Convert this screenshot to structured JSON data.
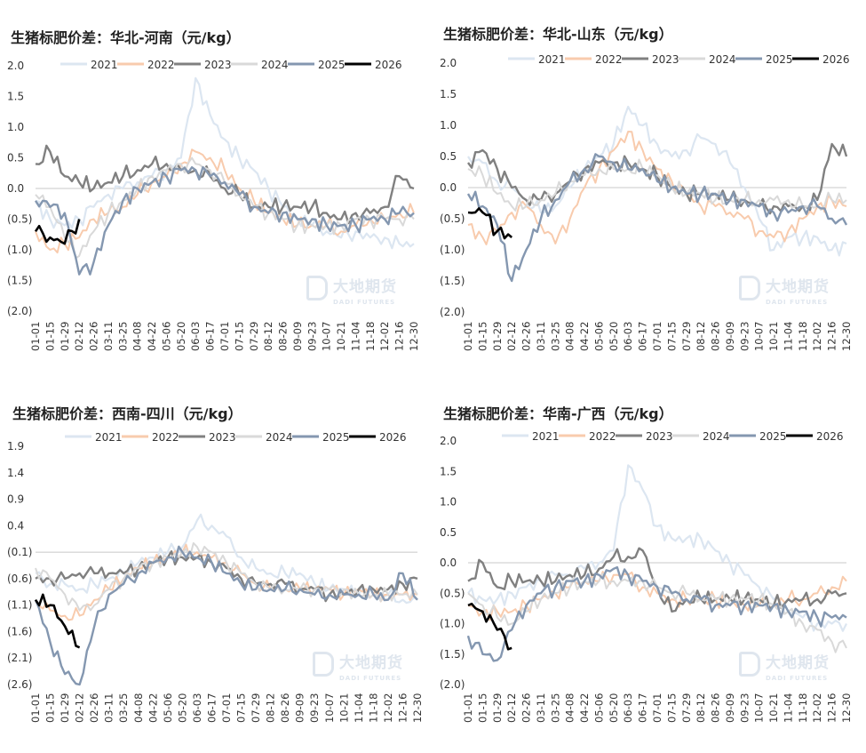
{
  "legend_labels": [
    "2021",
    "2022",
    "2023",
    "2024",
    "2025",
    "2026"
  ],
  "series_colors": {
    "2021": "#dce6f1",
    "2022": "#f8cbad",
    "2023": "#808080",
    "2024": "#d9d9d9",
    "2025": "#8497b0",
    "2026": "#000000"
  },
  "watermark": {
    "cn": "大地期货",
    "en": "DADI FUTURES"
  },
  "charts": [
    {
      "title": "生猪标肥价差：华北-河南（元/kg）",
      "ytick_labels": [
        "2.0",
        "1.5",
        "1.0",
        "0.5",
        "0.0",
        "(0.5)",
        "(1.0)",
        "(1.5)",
        "(2.0)"
      ],
      "xtick_labels": [
        "01-01",
        "01-15",
        "01-29",
        "02-12",
        "02-26",
        "03-11",
        "03-25",
        "04-08",
        "04-22",
        "05-06",
        "05-20",
        "06-03",
        "06-17",
        "07-01",
        "07-15",
        "07-29",
        "08-12",
        "08-26",
        "09-09",
        "09-23",
        "10-07",
        "10-21",
        "11-04",
        "11-18",
        "12-02",
        "12-16",
        "12-30"
      ]
    },
    {
      "title": "生猪标肥价差：华北-山东（元/kg）",
      "ytick_labels": [
        "2.0",
        "1.5",
        "1.0",
        "0.5",
        "0.0",
        "(0.5)",
        "(1.0)",
        "(1.5)",
        "(2.0)"
      ],
      "xtick_labels": [
        "01-01",
        "01-15",
        "01-29",
        "02-12",
        "02-26",
        "03-11",
        "03-25",
        "04-08",
        "04-22",
        "05-06",
        "05-20",
        "06-03",
        "06-17",
        "07-01",
        "07-15",
        "07-29",
        "08-12",
        "08-26",
        "09-09",
        "09-23",
        "10-07",
        "10-21",
        "11-04",
        "11-18",
        "12-02",
        "12-16",
        "12-30"
      ]
    },
    {
      "title": "生猪标肥价差：西南-四川（元/kg）",
      "ytick_labels": [
        "1.9",
        "1.4",
        "0.9",
        "0.4",
        "(0.1)",
        "(0.6)",
        "(1.1)",
        "(1.6)",
        "(2.1)",
        "(2.6)"
      ],
      "xtick_labels": [
        "01-01",
        "01-15",
        "01-29",
        "02-12",
        "02-26",
        "03-11",
        "03-25",
        "04-08",
        "04-22",
        "05-06",
        "05-20",
        "06-03",
        "06-17",
        "07-01",
        "07-15",
        "07-29",
        "08-12",
        "08-26",
        "09-09",
        "09-23",
        "10-07",
        "10-21",
        "11-04",
        "11-18",
        "12-02",
        "12-16",
        "12-30"
      ]
    },
    {
      "title": "生猪标肥价差：华南-广西（元/kg）",
      "ytick_labels": [
        "2.0",
        "1.5",
        "1.0",
        "0.5",
        "0.0",
        "(0.5)",
        "(1.0)",
        "(1.5)",
        "(2.0)"
      ],
      "xtick_labels": [
        "01-01",
        "01-15",
        "01-29",
        "02-12",
        "02-26",
        "03-11",
        "03-25",
        "04-08",
        "04-22",
        "05-06",
        "05-20",
        "06-03",
        "06-17",
        "07-01",
        "07-15",
        "07-29",
        "08-12",
        "08-26",
        "09-09",
        "09-23",
        "10-07",
        "10-21",
        "11-04",
        "11-18",
        "12-02",
        "12-16",
        "12-30"
      ]
    }
  ],
  "chart_data": [
    {
      "type": "line",
      "title": "生猪标肥价差：华北-河南（元/kg）",
      "x_dates": [
        "01-01",
        "01-15",
        "01-29",
        "02-12",
        "02-26",
        "03-11",
        "03-25",
        "04-08",
        "04-22",
        "05-06",
        "05-20",
        "06-03",
        "06-17",
        "07-01",
        "07-15",
        "07-29",
        "08-12",
        "08-26",
        "09-09",
        "09-23",
        "10-07",
        "10-21",
        "11-04",
        "11-18",
        "12-02",
        "12-16",
        "12-30"
      ],
      "ylim": [
        -2.0,
        2.0
      ],
      "reference_line_y": 0,
      "series": [
        {
          "name": "2021",
          "values": [
            -0.2,
            -0.5,
            -0.6,
            -0.5,
            -0.3,
            -0.1,
            0.0,
            0.1,
            0.2,
            0.3,
            0.5,
            1.8,
            1.2,
            0.8,
            0.5,
            0.3,
            0.0,
            -0.3,
            -0.5,
            -0.6,
            -0.7,
            -0.8,
            -0.7,
            -0.8,
            -0.8,
            -0.9,
            -0.9
          ]
        },
        {
          "name": "2022",
          "values": [
            -0.7,
            -1.0,
            -0.9,
            -0.8,
            -0.5,
            -0.4,
            -0.3,
            -0.1,
            0.1,
            0.2,
            0.4,
            0.6,
            0.5,
            0.3,
            0.0,
            -0.2,
            -0.4,
            -0.5,
            -0.6,
            -0.6,
            -0.6,
            -0.7,
            -0.6,
            -0.5,
            -0.5,
            -0.4,
            -0.4
          ]
        },
        {
          "name": "2023",
          "values": [
            0.4,
            0.6,
            0.2,
            0.1,
            0.0,
            0.1,
            0.2,
            0.3,
            0.4,
            0.4,
            0.3,
            0.3,
            0.2,
            0.0,
            -0.1,
            -0.3,
            -0.3,
            -0.3,
            -0.3,
            -0.3,
            -0.4,
            -0.5,
            -0.4,
            -0.4,
            -0.3,
            0.2,
            0.0
          ]
        },
        {
          "name": "2024",
          "values": [
            -0.1,
            -0.3,
            -0.8,
            -1.1,
            -0.7,
            -0.4,
            -0.2,
            0.0,
            0.2,
            0.3,
            0.4,
            0.4,
            0.3,
            0.1,
            -0.1,
            -0.3,
            -0.4,
            -0.5,
            -0.6,
            -0.6,
            -0.6,
            -0.6,
            -0.5,
            -0.5,
            -0.5,
            -0.5,
            -0.5
          ]
        },
        {
          "name": "2025",
          "values": [
            -0.2,
            -0.3,
            -0.4,
            -1.4,
            -1.2,
            -0.6,
            -0.2,
            0.0,
            0.1,
            0.2,
            0.3,
            0.3,
            0.2,
            0.1,
            -0.1,
            -0.3,
            -0.4,
            -0.4,
            -0.5,
            -0.5,
            -0.6,
            -0.6,
            -0.6,
            -0.5,
            -0.5,
            -0.4,
            -0.4
          ]
        },
        {
          "name": "2026",
          "values": [
            -0.7,
            -0.8,
            -0.9,
            -0.5
          ]
        }
      ]
    },
    {
      "type": "line",
      "title": "生猪标肥价差：华北-山东（元/kg）",
      "x_dates": [
        "01-01",
        "01-15",
        "01-29",
        "02-12",
        "02-26",
        "03-11",
        "03-25",
        "04-08",
        "04-22",
        "05-06",
        "05-20",
        "06-03",
        "06-17",
        "07-01",
        "07-15",
        "07-29",
        "08-12",
        "08-26",
        "09-09",
        "09-23",
        "10-07",
        "10-21",
        "11-04",
        "11-18",
        "12-02",
        "12-16",
        "12-30"
      ],
      "ylim": [
        -2.0,
        2.0
      ],
      "reference_line_y": 0,
      "series": [
        {
          "name": "2021",
          "values": [
            0.5,
            0.4,
            0.1,
            0.0,
            -0.2,
            -0.4,
            -0.3,
            0.0,
            0.3,
            0.5,
            0.7,
            1.3,
            1.0,
            0.7,
            0.5,
            0.6,
            0.8,
            0.7,
            0.4,
            0.0,
            -0.5,
            -1.0,
            -0.8,
            -0.8,
            -0.8,
            -1.0,
            -0.9
          ]
        },
        {
          "name": "2022",
          "values": [
            -0.6,
            -0.8,
            -0.7,
            -0.4,
            -0.3,
            -0.6,
            -0.9,
            -0.5,
            0.0,
            0.3,
            0.6,
            0.9,
            0.6,
            0.3,
            0.1,
            -0.1,
            -0.3,
            -0.3,
            -0.4,
            -0.5,
            -0.7,
            -0.8,
            -0.7,
            -0.5,
            -0.3,
            -0.2,
            -0.3
          ]
        },
        {
          "name": "2023",
          "values": [
            0.4,
            0.6,
            0.3,
            0.0,
            -0.2,
            -0.2,
            -0.1,
            0.1,
            0.3,
            0.4,
            0.4,
            0.4,
            0.3,
            0.2,
            0.0,
            -0.1,
            -0.1,
            -0.1,
            -0.2,
            -0.2,
            -0.3,
            -0.3,
            -0.3,
            -0.3,
            -0.2,
            0.7,
            0.5
          ]
        },
        {
          "name": "2024",
          "values": [
            0.3,
            0.2,
            -0.1,
            -0.3,
            -0.3,
            -0.2,
            -0.1,
            0.1,
            0.2,
            0.3,
            0.3,
            0.3,
            0.3,
            0.2,
            0.0,
            -0.1,
            -0.1,
            -0.2,
            -0.2,
            -0.2,
            -0.2,
            -0.2,
            -0.2,
            -0.3,
            -0.3,
            -0.2,
            -0.2
          ]
        },
        {
          "name": "2025",
          "values": [
            -0.1,
            -0.3,
            -0.6,
            -1.5,
            -1.0,
            -0.5,
            -0.2,
            0.1,
            0.3,
            0.5,
            0.4,
            0.3,
            0.3,
            0.1,
            0.0,
            -0.1,
            -0.1,
            -0.1,
            -0.2,
            -0.2,
            -0.3,
            -0.4,
            -0.4,
            -0.3,
            -0.3,
            -0.5,
            -0.6
          ]
        },
        {
          "name": "2026",
          "values": [
            -0.4,
            -0.4,
            -0.7,
            -0.8
          ]
        }
      ]
    },
    {
      "type": "line",
      "title": "生猪标肥价差：西南-四川（元/kg）",
      "x_dates": [
        "01-01",
        "01-15",
        "01-29",
        "02-12",
        "02-26",
        "03-11",
        "03-25",
        "04-08",
        "04-22",
        "05-06",
        "05-20",
        "06-03",
        "06-17",
        "07-01",
        "07-15",
        "07-29",
        "08-12",
        "08-26",
        "09-09",
        "09-23",
        "10-07",
        "10-21",
        "11-04",
        "11-18",
        "12-02",
        "12-16",
        "12-30"
      ],
      "ylim": [
        -2.6,
        1.9
      ],
      "reference_line_y": -0.1,
      "series": [
        {
          "name": "2021",
          "values": [
            -0.5,
            -0.7,
            -0.7,
            -0.8,
            -0.7,
            -0.6,
            -0.5,
            -0.3,
            -0.2,
            -0.1,
            0.0,
            0.5,
            0.4,
            0.2,
            -0.2,
            -0.4,
            -0.5,
            -0.5,
            -0.5,
            -0.7,
            -0.8,
            -0.8,
            -0.9,
            -0.9,
            -0.9,
            -1.0,
            -1.0
          ]
        },
        {
          "name": "2022",
          "values": [
            -1.0,
            -1.2,
            -1.3,
            -1.3,
            -1.0,
            -0.8,
            -0.6,
            -0.4,
            -0.3,
            -0.2,
            -0.1,
            -0.1,
            -0.2,
            -0.3,
            -0.5,
            -0.7,
            -0.8,
            -0.8,
            -0.8,
            -0.8,
            -0.8,
            -0.9,
            -0.8,
            -0.9,
            -0.9,
            -0.9,
            -0.9
          ]
        },
        {
          "name": "2023",
          "values": [
            -0.6,
            -0.6,
            -0.6,
            -0.5,
            -0.5,
            -0.5,
            -0.5,
            -0.4,
            -0.3,
            -0.2,
            -0.2,
            -0.2,
            -0.3,
            -0.4,
            -0.6,
            -0.7,
            -0.7,
            -0.7,
            -0.8,
            -0.8,
            -0.9,
            -0.9,
            -0.8,
            -0.8,
            -0.8,
            -0.7,
            -0.6
          ]
        },
        {
          "name": "2024",
          "values": [
            -0.4,
            -0.6,
            -0.9,
            -1.2,
            -1.1,
            -0.8,
            -0.6,
            -0.4,
            -0.3,
            -0.2,
            -0.1,
            0.0,
            -0.1,
            -0.3,
            -0.5,
            -0.7,
            -0.8,
            -0.8,
            -0.8,
            -0.8,
            -0.8,
            -0.8,
            -0.9,
            -0.9,
            -0.9,
            -0.9,
            -0.9
          ]
        },
        {
          "name": "2025",
          "values": [
            -1.0,
            -1.8,
            -2.4,
            -2.6,
            -1.5,
            -0.9,
            -0.7,
            -0.5,
            -0.3,
            -0.2,
            -0.1,
            -0.2,
            -0.3,
            -0.5,
            -0.7,
            -0.8,
            -0.8,
            -0.8,
            -0.8,
            -0.9,
            -0.9,
            -0.9,
            -0.9,
            -0.9,
            -1.0,
            -0.5,
            -1.0
          ]
        },
        {
          "name": "2026",
          "values": [
            -1.0,
            -1.1,
            -1.5,
            -1.9
          ]
        }
      ]
    },
    {
      "type": "line",
      "title": "生猪标肥价差：华南-广西（元/kg）",
      "x_dates": [
        "01-01",
        "01-15",
        "01-29",
        "02-12",
        "02-26",
        "03-11",
        "03-25",
        "04-08",
        "04-22",
        "05-06",
        "05-20",
        "06-03",
        "06-17",
        "07-01",
        "07-15",
        "07-29",
        "08-12",
        "08-26",
        "09-09",
        "09-23",
        "10-07",
        "10-21",
        "11-04",
        "11-18",
        "12-02",
        "12-16",
        "12-30"
      ],
      "ylim": [
        -2.0,
        2.0
      ],
      "reference_line_y": 0,
      "series": [
        {
          "name": "2021",
          "values": [
            -0.5,
            -0.6,
            -0.6,
            -0.5,
            -0.4,
            -0.3,
            -0.2,
            -0.2,
            -0.1,
            0.0,
            0.2,
            1.6,
            1.2,
            0.6,
            0.4,
            0.4,
            0.4,
            0.2,
            0.0,
            -0.2,
            -0.4,
            -0.6,
            -0.8,
            -0.9,
            -1.0,
            -1.0,
            -1.0
          ]
        },
        {
          "name": "2022",
          "values": [
            -0.7,
            -0.8,
            -0.8,
            -0.8,
            -0.7,
            -0.6,
            -0.5,
            -0.4,
            -0.3,
            -0.3,
            -0.2,
            -0.2,
            -0.4,
            -0.5,
            -0.6,
            -0.6,
            -0.6,
            -0.6,
            -0.7,
            -0.7,
            -0.7,
            -0.7,
            -0.6,
            -0.6,
            -0.5,
            -0.4,
            -0.3
          ]
        },
        {
          "name": "2023",
          "values": [
            -0.3,
            0.0,
            -0.4,
            -0.3,
            -0.3,
            -0.3,
            -0.3,
            -0.2,
            -0.2,
            -0.1,
            0.1,
            0.1,
            0.2,
            -0.4,
            -0.8,
            -0.6,
            -0.6,
            -0.6,
            -0.6,
            -0.6,
            -0.6,
            -0.7,
            -0.6,
            -0.6,
            -0.6,
            -0.5,
            -0.5
          ]
        },
        {
          "name": "2024",
          "values": [
            -0.5,
            -0.7,
            -0.9,
            -1.0,
            -0.8,
            -0.6,
            -0.5,
            -0.4,
            -0.3,
            -0.3,
            -0.3,
            -0.3,
            -0.3,
            -0.4,
            -0.5,
            -0.5,
            -0.6,
            -0.6,
            -0.6,
            -0.6,
            -0.6,
            -0.7,
            -0.8,
            -1.0,
            -1.1,
            -1.3,
            -1.4
          ]
        },
        {
          "name": "2025",
          "values": [
            -1.2,
            -1.5,
            -1.6,
            -1.1,
            -0.7,
            -0.5,
            -0.4,
            -0.3,
            -0.3,
            -0.2,
            -0.1,
            -0.2,
            -0.3,
            -0.4,
            -0.5,
            -0.6,
            -0.6,
            -0.7,
            -0.7,
            -0.7,
            -0.7,
            -0.7,
            -0.8,
            -0.8,
            -0.9,
            -0.9,
            -0.9
          ]
        },
        {
          "name": "2026",
          "values": [
            -0.7,
            -0.8,
            -1.1,
            -1.4
          ]
        }
      ]
    }
  ]
}
